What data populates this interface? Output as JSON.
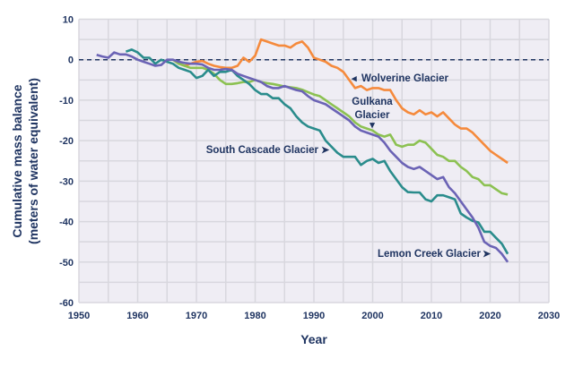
{
  "chart_data": {
    "type": "line",
    "title": "",
    "xlabel": "Year",
    "ylabel": [
      "Cumulative mass balance",
      "(meters of water equivalent)"
    ],
    "xlim": [
      1950,
      2030
    ],
    "ylim": [
      -60,
      10
    ],
    "xticks": [
      1950,
      1960,
      1970,
      1980,
      1990,
      2000,
      2010,
      2020,
      2030
    ],
    "yticks": [
      10,
      0,
      -10,
      -20,
      -30,
      -40,
      -50,
      -60
    ],
    "grid": true,
    "reference_line": 0,
    "series": [
      {
        "name": "Wolverine Glacier",
        "color": "#f58a3c",
        "start": 1966,
        "values": [
          0,
          -1,
          -1.5,
          -1,
          -0.5,
          -0.3,
          -1,
          -1.5,
          -1.8,
          -2,
          -2,
          -1.5,
          0.5,
          -0.5,
          1,
          5,
          4.5,
          4,
          3.5,
          3.5,
          3,
          4,
          4.5,
          3,
          0.5,
          0,
          -0.5,
          -1.5,
          -2,
          -3,
          -5,
          -7,
          -6.5,
          -7.5,
          -7,
          -7,
          -7.5,
          -7.5,
          -10,
          -12,
          -13,
          -13.5,
          -12.5,
          -13.5,
          -13,
          -14,
          -13,
          -14.5,
          -16,
          -17,
          -17,
          -18,
          -19.5,
          -21,
          -22.5,
          -23.5,
          -24.5,
          -25.5
        ]
      },
      {
        "name": "Gulkana Glacier",
        "color": "#8cc152",
        "start": 1966,
        "values": [
          0,
          -1,
          -1.5,
          -2,
          -2,
          -2,
          -2.5,
          -3.5,
          -5,
          -6,
          -6,
          -5.8,
          -5.5,
          -5.5,
          -5,
          -5.5,
          -5.8,
          -6,
          -6.3,
          -6.6,
          -6.8,
          -7,
          -7.4,
          -8,
          -8.6,
          -9,
          -10,
          -11,
          -12,
          -13,
          -14,
          -15.5,
          -16.5,
          -17,
          -17.5,
          -18.5,
          -19,
          -18.5,
          -21,
          -21.5,
          -21,
          -21,
          -20,
          -20.5,
          -22,
          -23.5,
          -24,
          -25,
          -25,
          -26.5,
          -27.5,
          -29,
          -29.5,
          -31,
          -31,
          -32,
          -33,
          -33.3
        ]
      },
      {
        "name": "South Cascade Glacier",
        "color": "#2a8c8c",
        "start": 1958,
        "values": [
          2,
          2.5,
          1.8,
          0.5,
          0.5,
          -1,
          0,
          -0.5,
          -1,
          -2,
          -2.5,
          -3,
          -4.5,
          -4,
          -2.5,
          -4,
          -3,
          -3,
          -2.5,
          -4,
          -5,
          -6,
          -7.5,
          -8.5,
          -8.5,
          -9.5,
          -9.5,
          -11,
          -12,
          -14,
          -15.5,
          -16.5,
          -17,
          -17.5,
          -20,
          -21.5,
          -23,
          -24,
          -24,
          -24,
          -26,
          -25,
          -24.5,
          -25.5,
          -25,
          -27.5,
          -29.5,
          -31.5,
          -32.7,
          -32.8,
          -32.8,
          -34.5,
          -35,
          -33.5,
          -33.5,
          -34,
          -34.5,
          -38,
          -39,
          -39.8,
          -40.2,
          -42.5,
          -42.5,
          -44,
          -45.5,
          -48
        ]
      },
      {
        "name": "Lemon Creek Glacier",
        "color": "#6b63b5",
        "start": 1953,
        "values": [
          1.2,
          0.8,
          0.5,
          1.8,
          1.3,
          1.3,
          0.8,
          0,
          -0.5,
          -1,
          -1.5,
          -1.3,
          0,
          0,
          -0.5,
          -0.8,
          -1,
          -1,
          -1.2,
          -2,
          -2.5,
          -2.5,
          -2.3,
          -2.5,
          -3.5,
          -4,
          -4.5,
          -5,
          -5.5,
          -6.5,
          -7,
          -7,
          -6.5,
          -7,
          -7.5,
          -7.8,
          -9,
          -10,
          -10.5,
          -11,
          -12,
          -13,
          -14,
          -15,
          -16.5,
          -17.5,
          -18,
          -18.5,
          -19,
          -20.5,
          -22.5,
          -24,
          -25.5,
          -26.5,
          -27,
          -26.5,
          -27.5,
          -28.5,
          -29.5,
          -29,
          -31.5,
          -33,
          -35,
          -37,
          -39,
          -41.5,
          -45,
          -46,
          -46.5,
          -48,
          -50
        ]
      }
    ],
    "annotations": {
      "wolverine": "Wolverine Glacier",
      "gulkana_1": "Gulkana",
      "gulkana_2": "Glacier",
      "south_cascade": "South Cascade Glacier",
      "lemon_creek": "Lemon Creek Glacier"
    },
    "colors": {
      "plot_bg": "#efedf4",
      "grid": "#d8d7de",
      "text": "#1f3461"
    }
  }
}
